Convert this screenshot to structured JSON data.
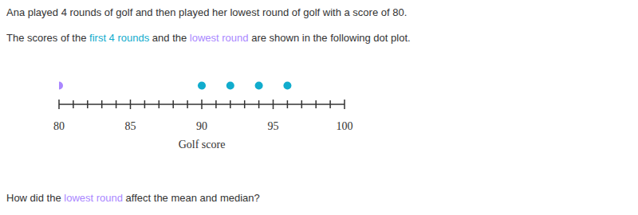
{
  "chart_data": {
    "type": "dot",
    "title": "Ana played 4 rounds of golf and then played her lowest round of golf with a score of 80.",
    "subtitle": "The scores of the first 4 rounds and the lowest round are shown in the following dot plot.",
    "annotations": [
      "How did the lowest round affect the mean and median?"
    ],
    "x_label": "Golf score",
    "series": [
      {
        "name": "first 4 rounds",
        "color": "#11accd",
        "values": [
          90,
          92,
          94,
          96
        ]
      },
      {
        "name": "lowest round",
        "color": "#aa87ff",
        "values": [
          80
        ]
      }
    ],
    "xlim": [
      80,
      100
    ],
    "xticks": [
      80,
      {
        "value": 81,
        "label": null
      },
      {
        "value": 82,
        "label": null
      },
      {
        "value": 83,
        "label": null
      },
      {
        "value": 84,
        "label": null
      },
      85,
      {
        "value": 86,
        "label": null
      },
      {
        "value": 87,
        "label": null
      },
      {
        "value": 88,
        "label": null
      },
      {
        "value": 89,
        "label": null
      },
      90,
      {
        "value": 91,
        "label": null
      },
      {
        "value": 92,
        "label": null
      },
      {
        "value": 93,
        "label": null
      },
      {
        "value": 94,
        "label": null
      },
      95,
      {
        "value": 96,
        "label": null
      },
      {
        "value": 97,
        "label": null
      },
      {
        "value": 98,
        "label": null
      },
      {
        "value": 99,
        "label": null
      },
      100
    ],
    "tick_labels": "x"
  }
}
